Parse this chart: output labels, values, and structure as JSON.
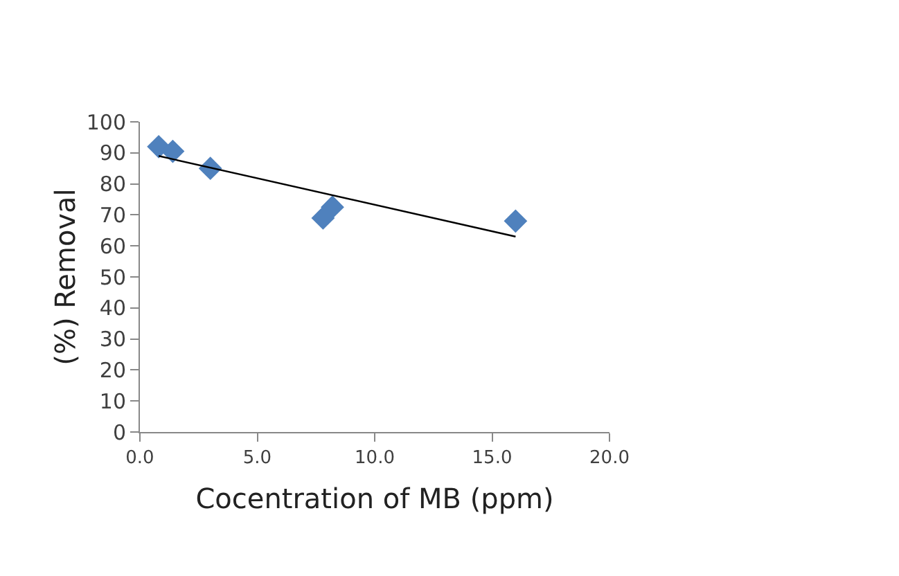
{
  "chart_data": {
    "type": "scatter",
    "xlabel": "Cocentration of MB (ppm)",
    "ylabel": "(%) Removal",
    "series": [
      {
        "color": "#4f81bd",
        "marker": "diamond",
        "x": [
          0.8,
          1.4,
          3.0,
          7.8,
          8.2,
          16.0
        ],
        "values": [
          92,
          90.5,
          85,
          69,
          72.5,
          68
        ]
      },
      {
        "type": "line",
        "color": "#000000",
        "marker": "none",
        "x": [
          0.8,
          16.0
        ],
        "values": [
          89,
          63
        ]
      }
    ],
    "xlim": [
      0,
      20
    ],
    "xticks": [
      {
        "value": 0,
        "label": "0.0"
      },
      {
        "value": 5,
        "label": "5.0"
      },
      {
        "value": 10,
        "label": "10.0"
      },
      {
        "value": 15,
        "label": "15.0"
      },
      {
        "value": 20,
        "label": "20.0"
      }
    ],
    "ylim": [
      0,
      100
    ],
    "yticks": [
      0,
      10,
      20,
      30,
      40,
      50,
      60,
      70,
      80,
      90,
      100
    ],
    "grid": false,
    "legend": false
  }
}
